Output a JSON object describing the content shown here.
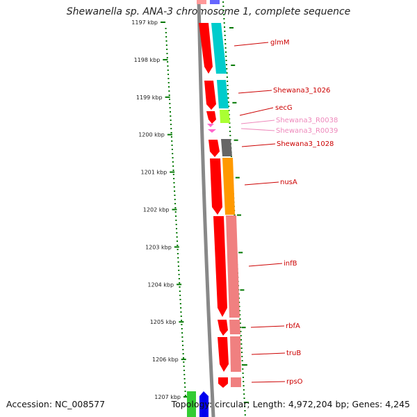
{
  "title": "Shewanella sp. ANA-3 chromosome 1, complete sequence",
  "accession": "Accession: NC_008577",
  "topology": "Topology: circular; Length: 4,972,204 bp; Genes: 4,245",
  "ticks": [
    "1197 kbp",
    "1198 kbp",
    "1199 kbp",
    "1200 kbp",
    "1201 kbp",
    "1202 kbp",
    "1203 kbp",
    "1204 kbp",
    "1205 kbp",
    "1206 kbp",
    "1207 kbp"
  ],
  "genes": [
    {
      "name": "glmM",
      "color": "#cc0000"
    },
    {
      "name": "Shewana3_1026",
      "color": "#cc0000"
    },
    {
      "name": "secG",
      "color": "#cc0000"
    },
    {
      "name": "Shewana3_R0038",
      "color": "#ee88bb"
    },
    {
      "name": "Shewana3_R0039",
      "color": "#ee88bb"
    },
    {
      "name": "Shewana3_1028",
      "color": "#cc0000"
    },
    {
      "name": "nusA",
      "color": "#cc0000"
    },
    {
      "name": "infB",
      "color": "#cc0000"
    },
    {
      "name": "rbfA",
      "color": "#cc0000"
    },
    {
      "name": "truB",
      "color": "#cc0000"
    },
    {
      "name": "rpsO",
      "color": "#cc0000"
    }
  ],
  "colors": {
    "cds": "#ff0000",
    "rna": "#ff88cc",
    "tick": "#007700",
    "backbone": "#888888",
    "cog_cyan": "#00cccc",
    "cog_green": "#aaff33",
    "cog_gray": "#666666",
    "cog_orange": "#ff9900",
    "cog_salmon": "#f08080",
    "bottom_green": "#33cc33",
    "bottom_blue": "#0000ee"
  }
}
